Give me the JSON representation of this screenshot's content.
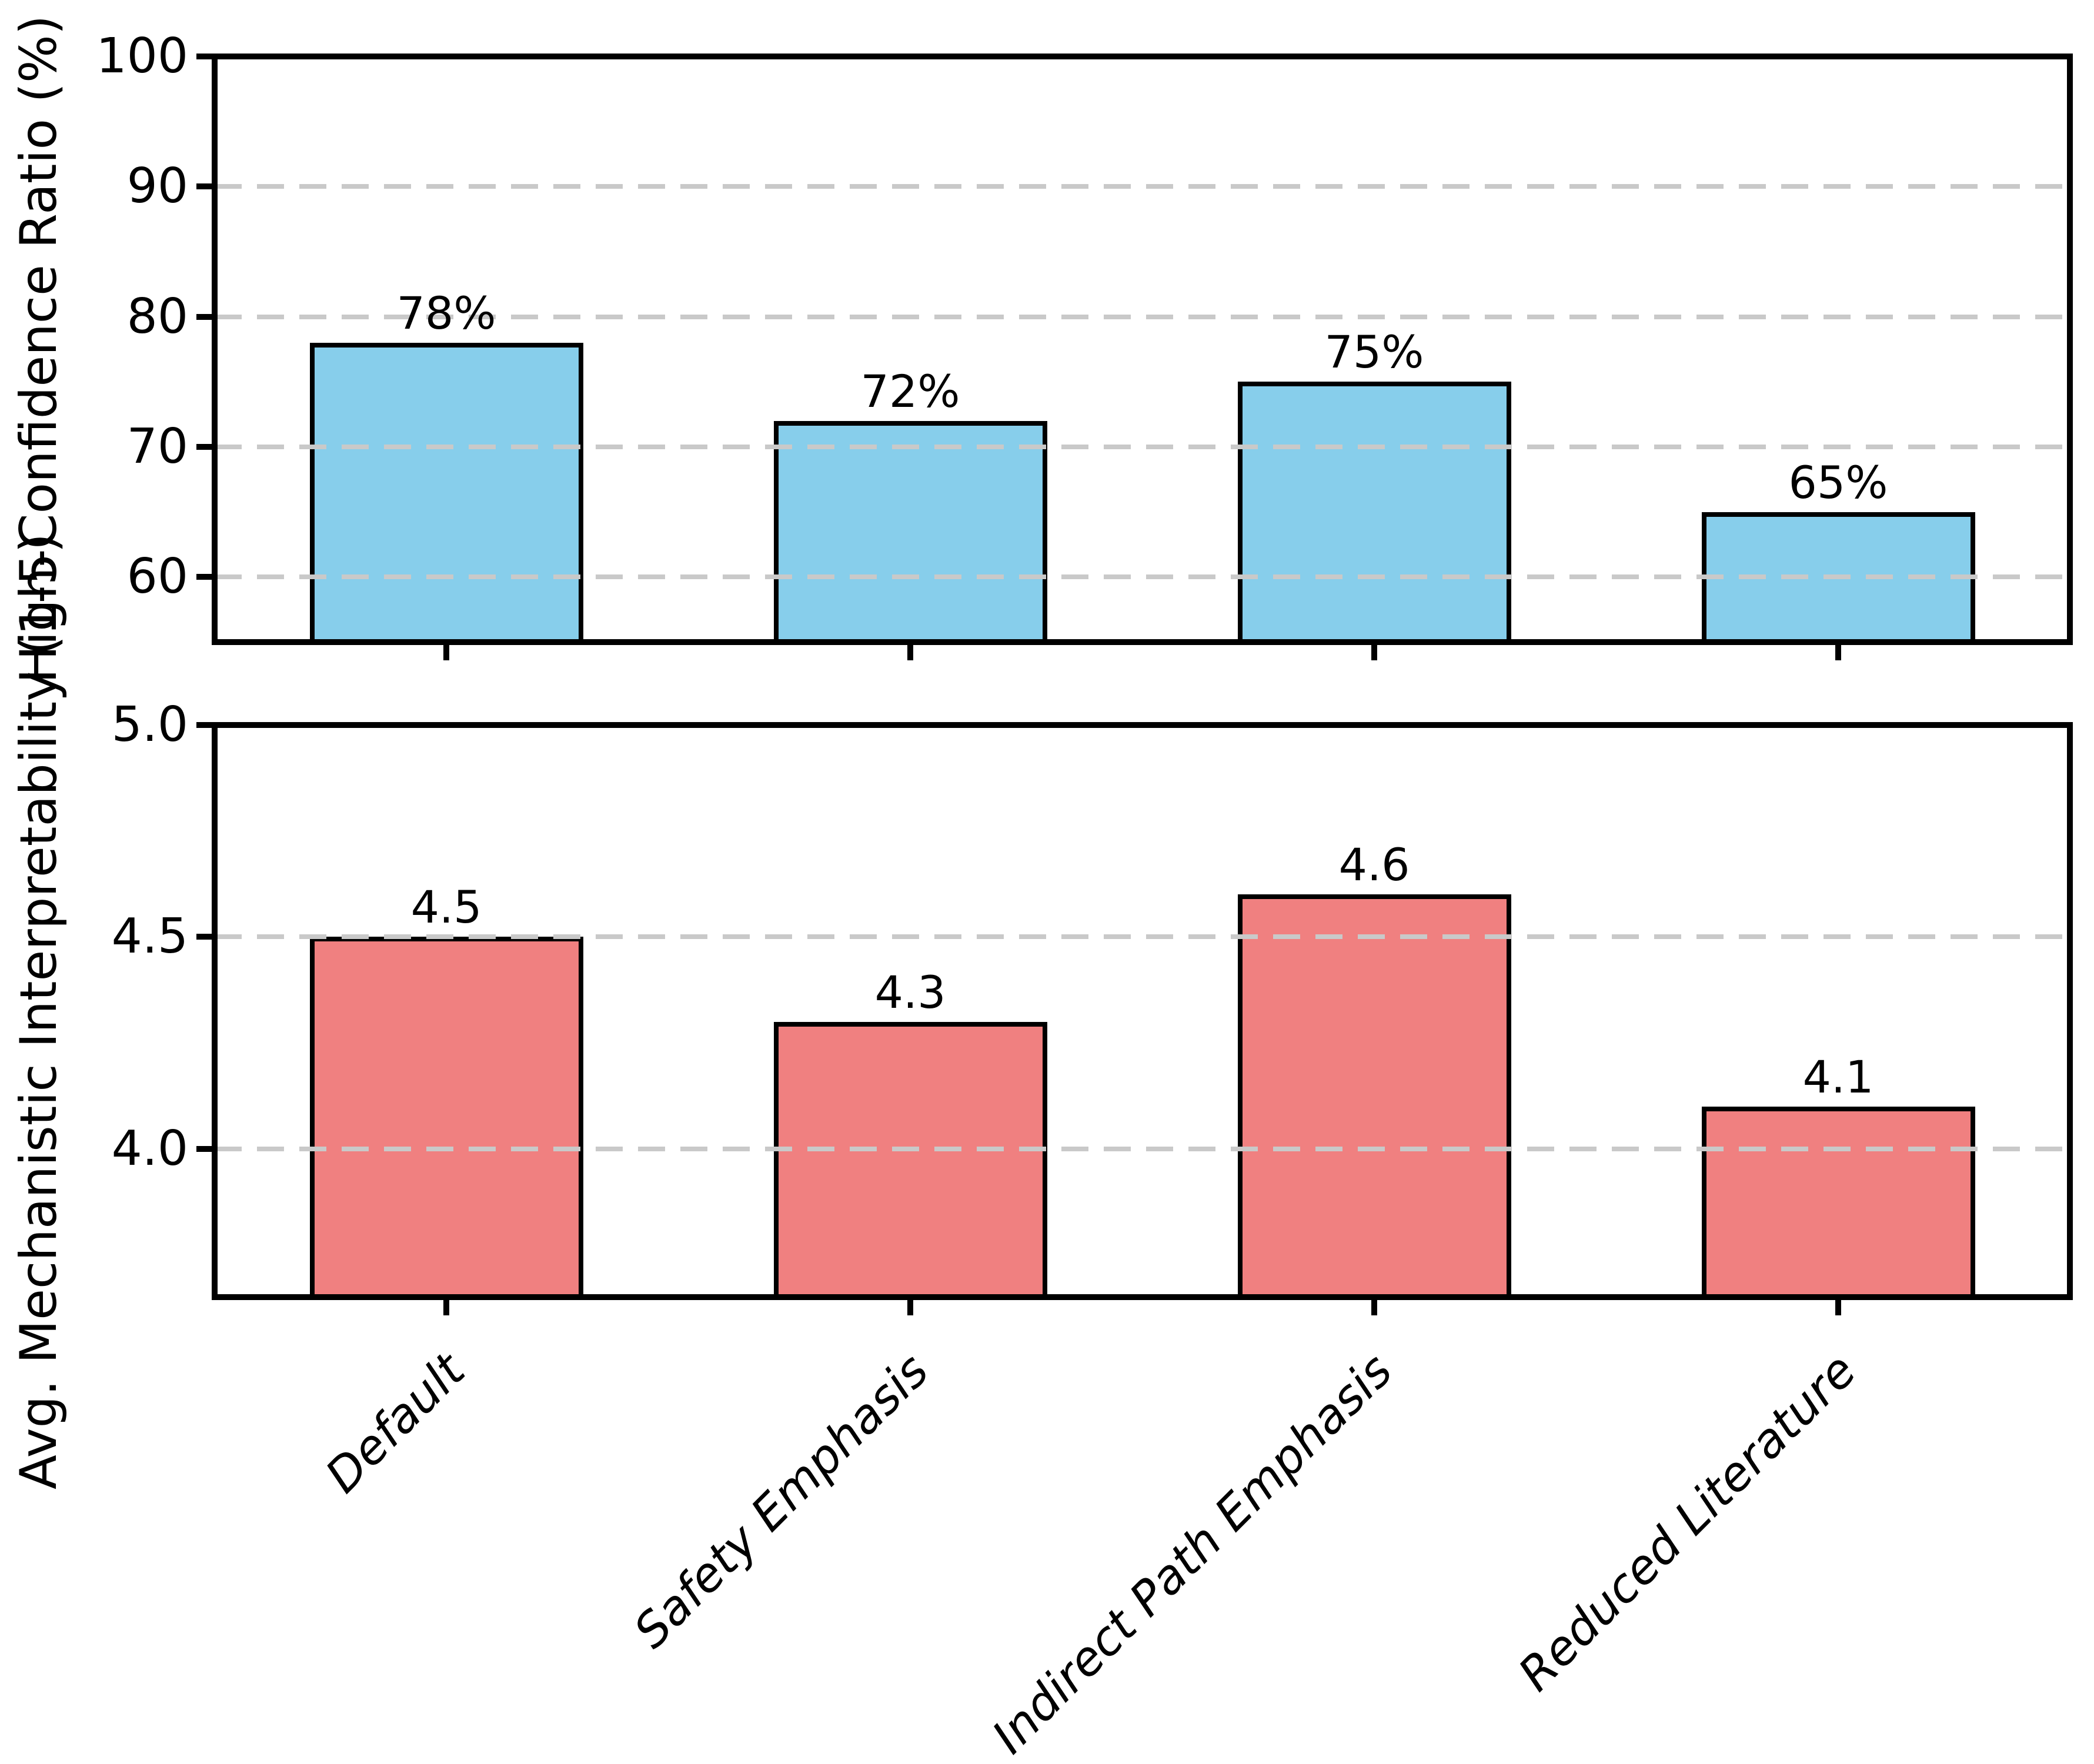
{
  "figure": {
    "background": "#ffffff",
    "text_color": "#000000"
  },
  "chart_data": [
    {
      "type": "bar",
      "panel": "top",
      "title": "",
      "xlabel": "",
      "ylabel": "High-Confidence Ratio (%)",
      "categories": [
        "Default",
        "Safety Emphasis",
        "Indirect Path Emphasis",
        "Reduced Literature"
      ],
      "values": [
        78,
        72,
        75,
        65
      ],
      "bar_labels": [
        "78%",
        "72%",
        "75%",
        "65%"
      ],
      "bar_color": "#87CEEB",
      "bar_edge_color": "#000000",
      "ylim": [
        55,
        100
      ],
      "yticks": [
        100,
        90,
        80,
        70,
        60
      ],
      "ytick_labels": [
        "100",
        "90",
        "80",
        "70",
        "60"
      ],
      "grid": "horizontal dashed",
      "grid_color": "#c9c9c9",
      "legend": "none",
      "show_xtick_labels": false
    },
    {
      "type": "bar",
      "panel": "bottom",
      "title": "",
      "xlabel": "",
      "ylabel": "Avg. Mechanistic Interpretability (1-5)",
      "categories": [
        "Default",
        "Safety Emphasis",
        "Indirect Path Emphasis",
        "Reduced Literature"
      ],
      "values": [
        4.5,
        4.3,
        4.6,
        4.1
      ],
      "bar_labels": [
        "4.5",
        "4.3",
        "4.6",
        "4.1"
      ],
      "bar_color": "#F08080",
      "bar_edge_color": "#000000",
      "ylim": [
        3.65,
        5.0
      ],
      "yticks": [
        5.0,
        4.5,
        4.0
      ],
      "ytick_labels": [
        "5.0",
        "4.5",
        "4.0"
      ],
      "grid": "horizontal dashed",
      "grid_color": "#c9c9c9",
      "legend": "none",
      "show_xtick_labels": true,
      "xtick_label_style": "italic, rotated 45deg"
    }
  ]
}
